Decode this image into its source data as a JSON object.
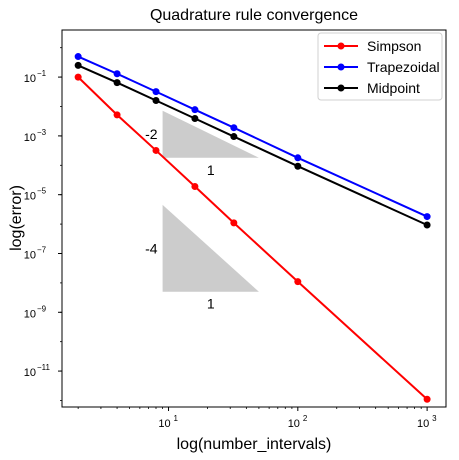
{
  "chart_data": {
    "type": "line",
    "title": "Quadrature rule convergence",
    "xlabel": "log(number_intervals)",
    "ylabel": "log(error)",
    "xscale": "log",
    "yscale": "log",
    "xlim": [
      1.5,
      1400
    ],
    "ylim": [
      6e-13,
      4
    ],
    "grid": false,
    "legend_position": "top-right",
    "x": [
      2,
      4,
      8,
      16,
      32,
      100,
      1000
    ],
    "x_ticks": [
      {
        "value": 10,
        "base": "10",
        "exp": "1"
      },
      {
        "value": 100,
        "base": "10",
        "exp": "2"
      },
      {
        "value": 1000,
        "base": "10",
        "exp": "3"
      }
    ],
    "y_ticks": [
      {
        "value": 0.1,
        "base": "10",
        "exp": "−1"
      },
      {
        "value": 0.001,
        "base": "10",
        "exp": "−3"
      },
      {
        "value": 1e-05,
        "base": "10",
        "exp": "−5"
      },
      {
        "value": 1e-07,
        "base": "10",
        "exp": "−7"
      },
      {
        "value": 1e-09,
        "base": "10",
        "exp": "−9"
      },
      {
        "value": 1e-11,
        "base": "10",
        "exp": "−11"
      }
    ],
    "series": [
      {
        "name": "Simpson",
        "color": "#ff0000",
        "values": [
          0.1,
          0.0052,
          0.00032,
          1.9e-05,
          1.1e-06,
          1.1e-08,
          1.1e-12
        ]
      },
      {
        "name": "Trapezoidal",
        "color": "#0000ff",
        "values": [
          0.5,
          0.13,
          0.032,
          0.0078,
          0.0019,
          0.00018,
          1.8e-06
        ]
      },
      {
        "name": "Midpoint",
        "color": "#000000",
        "values": [
          0.25,
          0.065,
          0.016,
          0.0039,
          0.00095,
          9.3e-05,
          9.3e-07
        ]
      }
    ],
    "annotations": [
      {
        "shape": "slope-triangle",
        "x_range": [
          9,
          50
        ],
        "y_range": [
          0.00018,
          0.0072
        ],
        "slope_label": "-2",
        "run_label": "1",
        "fill": "#cccccc"
      },
      {
        "shape": "slope-triangle",
        "x_range": [
          9,
          50
        ],
        "y_range": [
          5e-09,
          4.5e-06
        ],
        "slope_label": "-4",
        "run_label": "1",
        "fill": "#cccccc"
      }
    ]
  }
}
